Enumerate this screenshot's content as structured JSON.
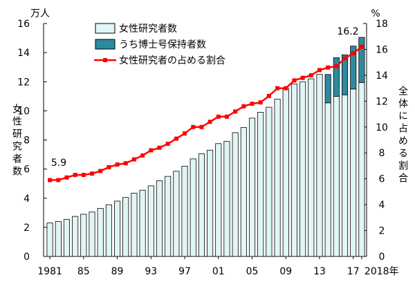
{
  "chart_data": {
    "type": "bar",
    "x_tick_labels": [
      "1981",
      "85",
      "89",
      "93",
      "97",
      "01",
      "05",
      "09",
      "13",
      "17",
      "2018年"
    ],
    "left_axis": {
      "unit": "万人",
      "label": "女性研究者数",
      "ylim": [
        0,
        16
      ],
      "ticks": [
        "0",
        "2",
        "4",
        "6",
        "8",
        "10",
        "12",
        "14",
        "16"
      ]
    },
    "right_axis": {
      "unit": "%",
      "label": "全体に占める割合",
      "ylim": [
        0,
        18
      ],
      "ticks": [
        "0",
        "2",
        "4",
        "6",
        "8",
        "10",
        "12",
        "14",
        "16",
        "18"
      ]
    },
    "years": [
      1981,
      1982,
      1983,
      1984,
      1985,
      1986,
      1987,
      1988,
      1989,
      1990,
      1991,
      1992,
      1993,
      1994,
      1995,
      1996,
      1997,
      1998,
      1999,
      2000,
      2001,
      2002,
      2003,
      2004,
      2005,
      2006,
      2007,
      2008,
      2009,
      2010,
      2011,
      2012,
      2013,
      2014,
      2015,
      2016,
      2017,
      2018
    ],
    "series": [
      {
        "name": "女性研究者数",
        "axis": "left",
        "color": "#e0f5f5",
        "values": [
          2.3,
          2.4,
          2.55,
          2.75,
          2.9,
          3.05,
          3.3,
          3.55,
          3.8,
          4.05,
          4.35,
          4.55,
          4.85,
          5.2,
          5.5,
          5.85,
          6.2,
          6.7,
          7.05,
          7.3,
          7.75,
          7.9,
          8.5,
          8.85,
          9.5,
          9.9,
          10.25,
          10.8,
          11.55,
          11.85,
          12.0,
          12.2,
          12.5,
          10.55,
          11.0,
          11.1,
          11.5,
          11.95
        ]
      },
      {
        "name": "うち博士号保持者数",
        "axis": "left",
        "color": "#2e8a9e",
        "values": [
          null,
          null,
          null,
          null,
          null,
          null,
          null,
          null,
          null,
          null,
          null,
          null,
          null,
          null,
          null,
          null,
          null,
          null,
          null,
          null,
          null,
          null,
          null,
          null,
          null,
          null,
          null,
          null,
          null,
          null,
          null,
          null,
          null,
          1.95,
          2.65,
          2.75,
          2.95,
          3.1
        ]
      },
      {
        "name": "女性研究者の占める割合",
        "axis": "right",
        "color": "#ff0000",
        "values": [
          5.9,
          5.9,
          6.1,
          6.3,
          6.3,
          6.4,
          6.6,
          6.9,
          7.1,
          7.2,
          7.5,
          7.8,
          8.2,
          8.4,
          8.7,
          9.1,
          9.5,
          10.0,
          10.0,
          10.4,
          10.8,
          10.8,
          11.2,
          11.6,
          11.8,
          11.9,
          12.4,
          13.0,
          13.0,
          13.6,
          13.8,
          14.0,
          14.4,
          14.6,
          14.7,
          15.3,
          15.7,
          16.2
        ]
      }
    ],
    "annotations": [
      "5.9",
      "16.2"
    ],
    "legend_position": "top-left",
    "grid": false
  }
}
